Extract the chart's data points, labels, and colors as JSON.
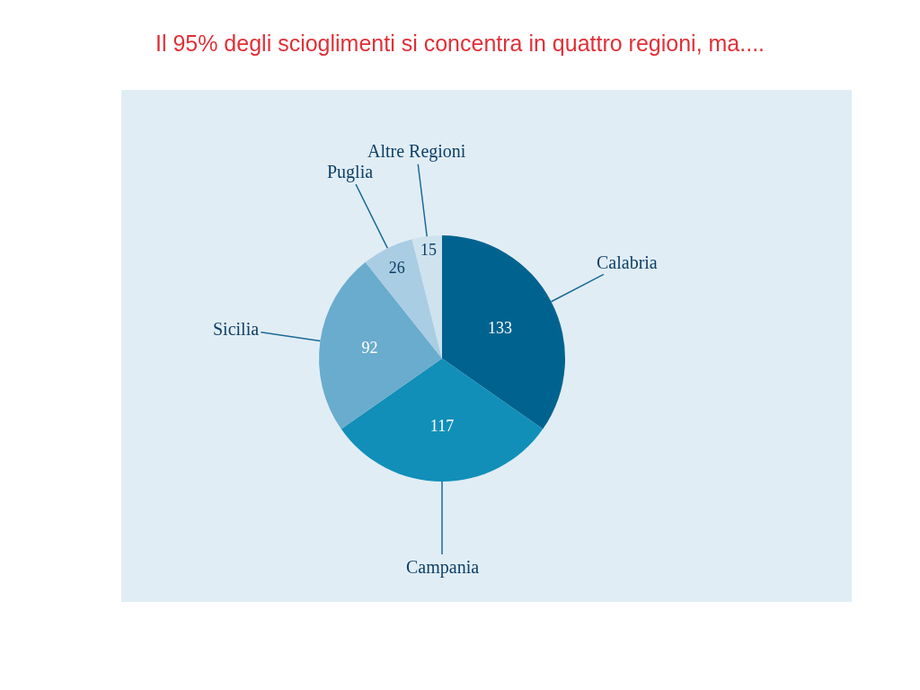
{
  "chart_data": {
    "type": "pie",
    "title": "Il 95% degli scioglimenti si concentra in quattro regioni, ma....",
    "categories": [
      "Calabria",
      "Campania",
      "Sicilia",
      "Puglia",
      "Altre Regioni"
    ],
    "values": [
      133,
      117,
      92,
      26,
      15
    ],
    "colors": [
      "#00638f",
      "#118fb8",
      "#6aaccd",
      "#a9cde3",
      "#cfe3ef"
    ],
    "data_labels": true,
    "legend": false
  }
}
